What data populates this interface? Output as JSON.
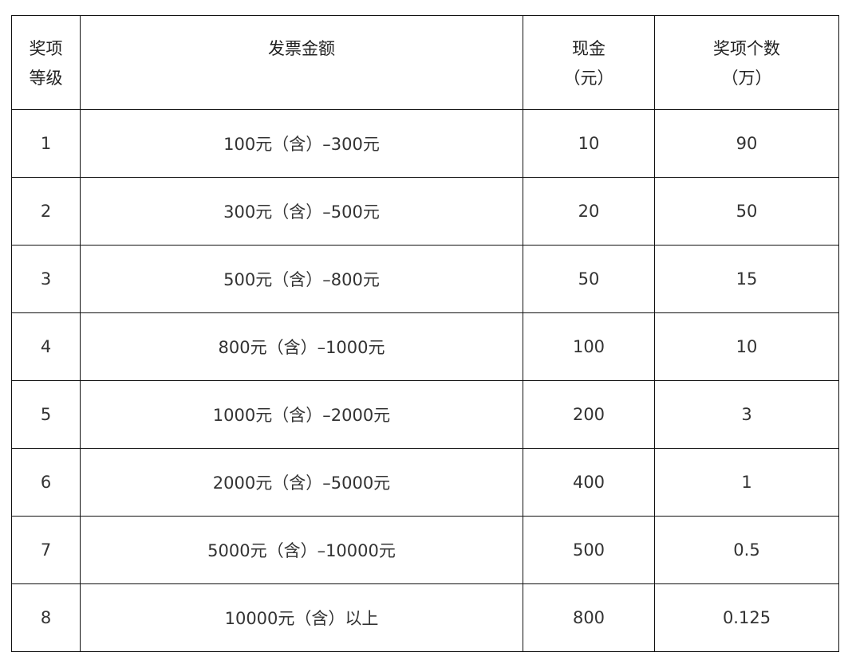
{
  "table": {
    "headers": [
      [
        "奖项",
        "等级"
      ],
      [
        "发票金额"
      ],
      [
        "现金",
        "（元）"
      ],
      [
        "奖项个数",
        "（万）"
      ]
    ],
    "rows": [
      [
        "1",
        "100元（含）–300元",
        "10",
        "90"
      ],
      [
        "2",
        "300元（含）–500元",
        "20",
        "50"
      ],
      [
        "3",
        "500元（含）–800元",
        "50",
        "15"
      ],
      [
        "4",
        "800元（含）–1000元",
        "100",
        "10"
      ],
      [
        "5",
        "1000元（含）–2000元",
        "200",
        "3"
      ],
      [
        "6",
        "2000元（含）–5000元",
        "400",
        "1"
      ],
      [
        "7",
        "5000元（含）–10000元",
        "500",
        "0.5"
      ],
      [
        "8",
        "10000元（含）以上",
        "800",
        "0.125"
      ]
    ]
  }
}
